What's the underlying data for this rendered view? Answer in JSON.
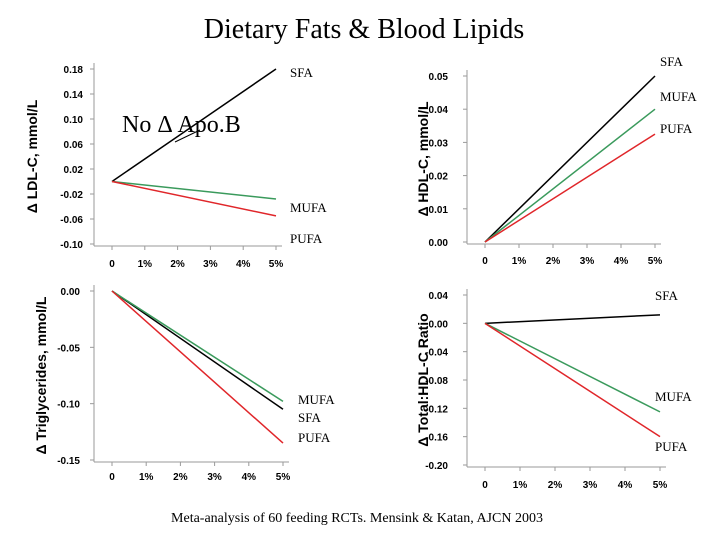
{
  "slide": {
    "title": "Dietary Fats & Blood Lipids",
    "footer": "Meta-analysis of 60 feeding RCTs.   Mensink & Katan, AJCN 2003",
    "callout": "No Δ Apo.B"
  },
  "colors": {
    "SFA": "#000000",
    "MUFA": "#3a9a5c",
    "PUFA": "#e0262a",
    "axis": "#9a9a9a"
  },
  "chart_data": [
    {
      "id": "ldl",
      "type": "line",
      "ylabel": "Δ LDL-C, mmol/L",
      "x": [
        0,
        5
      ],
      "xticks": [
        "0",
        "1%",
        "2%",
        "3%",
        "4%",
        "5%"
      ],
      "ylim": [
        -0.1,
        0.18
      ],
      "yticks": [
        0.18,
        0.14,
        0.1,
        0.06,
        0.02,
        -0.02,
        -0.06,
        -0.1
      ],
      "ytick_labels": [
        "0.18",
        "0.14",
        "0.10",
        "0.06",
        "0.02",
        "-0.02",
        "-0.06",
        "-0.10"
      ],
      "series": [
        {
          "name": "SFA",
          "values": [
            0,
            0.18
          ]
        },
        {
          "name": "MUFA",
          "values": [
            0,
            -0.028
          ]
        },
        {
          "name": "PUFA",
          "values": [
            0,
            -0.055
          ]
        }
      ],
      "labels": [
        "SFA",
        "MUFA",
        "PUFA"
      ]
    },
    {
      "id": "hdl",
      "type": "line",
      "ylabel": "Δ HDL-C, mmol/L",
      "x": [
        0,
        5
      ],
      "xticks": [
        "0",
        "1%",
        "2%",
        "3%",
        "4%",
        "5%"
      ],
      "ylim": [
        0,
        0.05
      ],
      "yticks": [
        0.05,
        0.04,
        0.03,
        0.02,
        0.01,
        0.0
      ],
      "ytick_labels": [
        "0.05",
        "0.04",
        "0.03",
        "0.02",
        "0.01",
        "0.00"
      ],
      "series": [
        {
          "name": "SFA",
          "values": [
            0,
            0.05
          ]
        },
        {
          "name": "MUFA",
          "values": [
            0,
            0.04
          ]
        },
        {
          "name": "PUFA",
          "values": [
            0,
            0.0325
          ]
        }
      ],
      "labels": [
        "SFA",
        "MUFA",
        "PUFA"
      ]
    },
    {
      "id": "tg",
      "type": "line",
      "ylabel": "Δ Triglycerides, mmol/L",
      "x": [
        0,
        5
      ],
      "xticks": [
        "0",
        "1%",
        "2%",
        "3%",
        "4%",
        "5%"
      ],
      "ylim": [
        -0.15,
        0.0
      ],
      "yticks": [
        0.0,
        -0.05,
        -0.1,
        -0.15
      ],
      "ytick_labels": [
        "0.00",
        "-0.05",
        "-0.10",
        "-0.15"
      ],
      "series": [
        {
          "name": "SFA",
          "values": [
            0,
            -0.105
          ]
        },
        {
          "name": "MUFA",
          "values": [
            0,
            -0.098
          ]
        },
        {
          "name": "PUFA",
          "values": [
            0,
            -0.135
          ]
        }
      ],
      "labels": [
        "MUFA",
        "SFA",
        "PUFA"
      ]
    },
    {
      "id": "ratio",
      "type": "line",
      "ylabel": "Δ Total:HDL-C Ratio",
      "x": [
        0,
        5
      ],
      "xticks": [
        "0",
        "1%",
        "2%",
        "3%",
        "4%",
        "5%"
      ],
      "ylim": [
        -0.2,
        0.04
      ],
      "yticks": [
        0.04,
        0.0,
        -0.04,
        -0.08,
        -0.12,
        -0.16,
        -0.2
      ],
      "ytick_labels": [
        "0.04",
        "0.00",
        "-0.04",
        "-0.08",
        "-0.12",
        "-0.16",
        "-0.20"
      ],
      "series": [
        {
          "name": "SFA",
          "values": [
            0,
            0.012
          ]
        },
        {
          "name": "MUFA",
          "values": [
            0,
            -0.125
          ]
        },
        {
          "name": "PUFA",
          "values": [
            0,
            -0.16
          ]
        }
      ],
      "labels": [
        "SFA",
        "MUFA",
        "PUFA"
      ]
    }
  ]
}
